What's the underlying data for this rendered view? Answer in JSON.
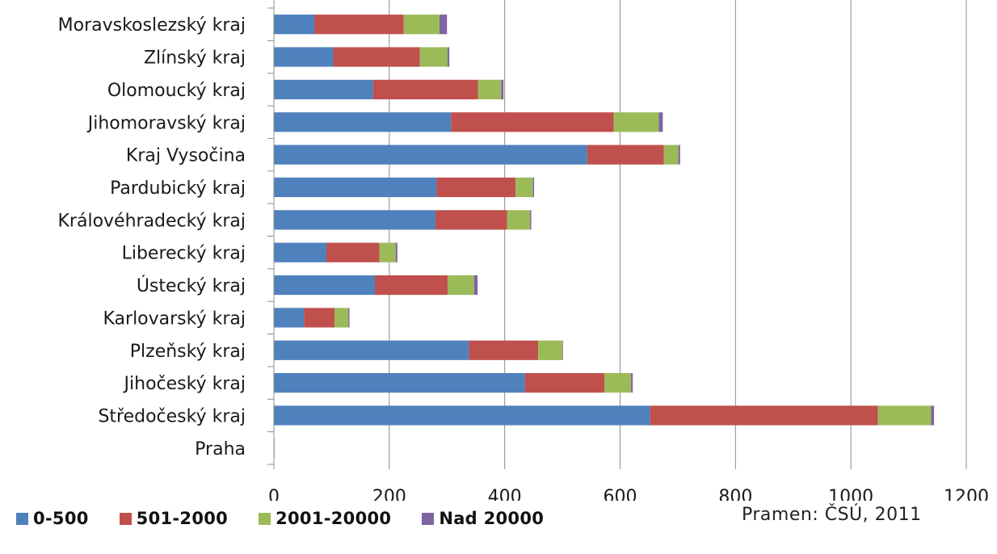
{
  "chart_data": {
    "type": "bar",
    "orientation": "horizontal",
    "stacked": true,
    "categories": [
      "Moravskoslezský kraj",
      "Zlínský kraj",
      "Olomoucký kraj",
      "Jihomoravský kraj",
      "Kraj Vysočina",
      "Pardubický kraj",
      "Královéhradecký kraj",
      "Liberecký kraj",
      "Ústecký kraj",
      "Karlovarský kraj",
      "Plzeňský kraj",
      "Jihočeský kraj",
      "Středočeský kraj",
      "Praha"
    ],
    "series": [
      {
        "name": "0-500",
        "color": "#4f81bd",
        "values": [
          70,
          103,
          172,
          307,
          543,
          282,
          280,
          91,
          175,
          52,
          338,
          435,
          652,
          0
        ]
      },
      {
        "name": "501-2000",
        "color": "#c0504d",
        "values": [
          155,
          150,
          182,
          282,
          133,
          137,
          124,
          92,
          126,
          53,
          120,
          138,
          395,
          0
        ]
      },
      {
        "name": "2001-20000",
        "color": "#9bbb59",
        "values": [
          62,
          48,
          40,
          78,
          25,
          30,
          40,
          28,
          46,
          24,
          42,
          46,
          92,
          0
        ]
      },
      {
        "name": "Nad 20000",
        "color": "#8064a2",
        "values": [
          13,
          3,
          4,
          7,
          3,
          2,
          2,
          3,
          6,
          2,
          1,
          3,
          5,
          1
        ]
      }
    ],
    "xlim": [
      0,
      1200
    ],
    "xticks": [
      0,
      200,
      400,
      600,
      800,
      1000,
      1200
    ],
    "grid": "vertical",
    "legend_position": "bottom",
    "source": "Pramen: ČSÚ, 2011"
  }
}
